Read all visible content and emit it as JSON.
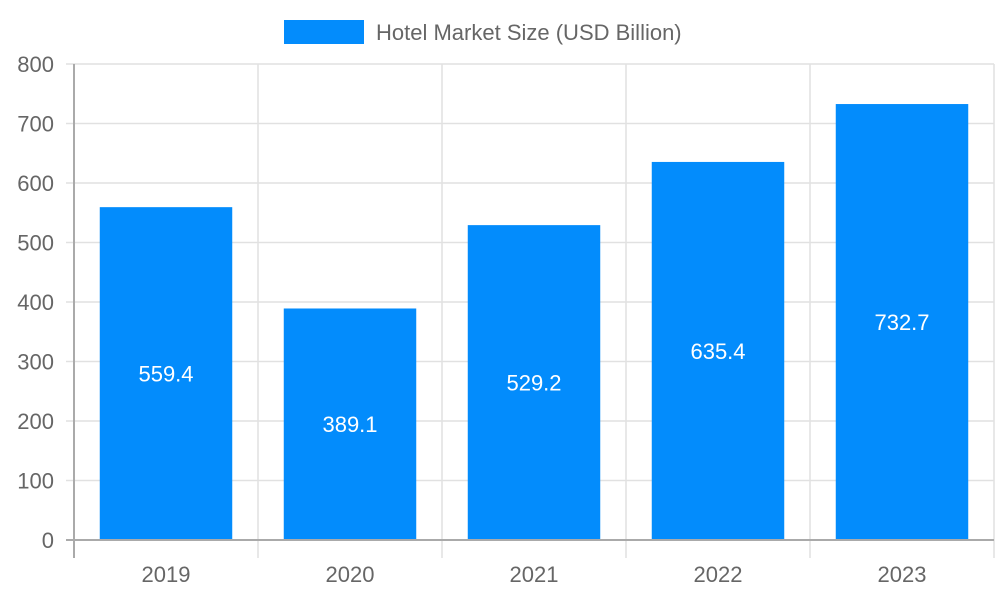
{
  "chart_data": {
    "type": "bar",
    "title": "",
    "xlabel": "",
    "ylabel": "",
    "categories": [
      "2019",
      "2020",
      "2021",
      "2022",
      "2023"
    ],
    "series": [
      {
        "name": "Hotel Market Size (USD Billion)",
        "values": [
          559.4,
          389.1,
          529.2,
          635.4,
          732.7
        ],
        "color": "#038cfc"
      }
    ],
    "ylim": [
      0,
      800
    ],
    "yticks": [
      0,
      100,
      200,
      300,
      400,
      500,
      600,
      700,
      800
    ],
    "grid": true,
    "legend_position": "top",
    "data_labels": [
      "559.4",
      "389.1",
      "529.2",
      "635.4",
      "732.7"
    ]
  },
  "legend": {
    "label": "Hotel Market Size (USD Billion)",
    "color": "#038cfc"
  },
  "colors": {
    "bar": "#038cfc",
    "grid": "#e1e1e1",
    "axis": "#aaaaaa",
    "text": "#666666"
  }
}
